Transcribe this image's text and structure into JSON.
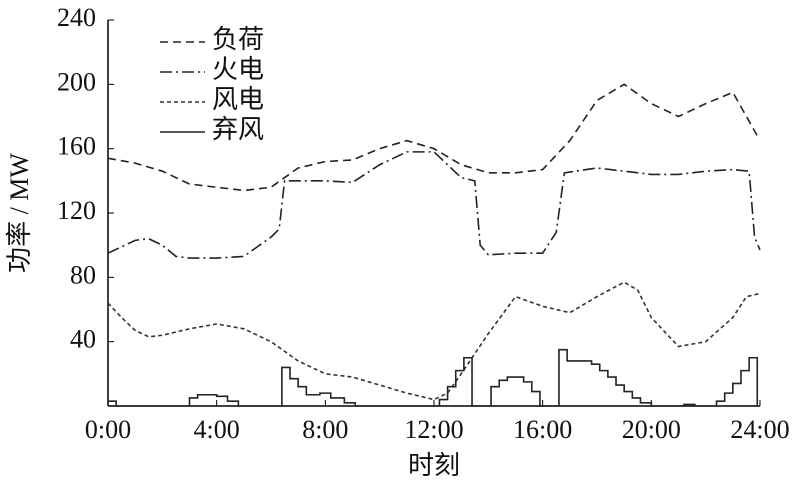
{
  "chart_data": {
    "type": "line",
    "x_label": "时刻",
    "y_label": "功率 / MW",
    "xlim": [
      0,
      24
    ],
    "ylim": [
      0,
      240
    ],
    "xticks": [
      {
        "value": 0,
        "label": "0:00"
      },
      {
        "value": 4,
        "label": "4:00"
      },
      {
        "value": 8,
        "label": "8:00"
      },
      {
        "value": 12,
        "label": "12:00"
      },
      {
        "value": 16,
        "label": "16:00"
      },
      {
        "value": 20,
        "label": "20:00"
      },
      {
        "value": 24,
        "label": "24:00"
      }
    ],
    "yticks": [
      40,
      80,
      120,
      160,
      200,
      240
    ],
    "grid": false,
    "legend": "upper left",
    "series": [
      {
        "name": "负荷",
        "color": "#222222",
        "line_style": "dashed",
        "x": [
          0,
          1,
          2,
          3,
          4,
          5,
          6,
          7,
          8,
          9,
          10,
          11,
          12,
          13,
          14,
          15,
          16,
          17,
          18,
          19,
          20,
          21,
          22,
          23,
          23.9
        ],
        "values": [
          154,
          151,
          146,
          138,
          136,
          134,
          136,
          148,
          152,
          153,
          160,
          165,
          160,
          150,
          145,
          145,
          147,
          165,
          190,
          200,
          188,
          180,
          188,
          195,
          168
        ]
      },
      {
        "name": "火电",
        "color": "#222222",
        "line_style": "dashdot",
        "x": [
          0,
          1,
          1.5,
          2,
          2.5,
          3,
          4,
          5,
          6,
          6.3,
          6.5,
          7,
          8,
          9,
          10,
          11,
          12,
          13,
          13.5,
          13.7,
          14,
          15,
          16,
          16.5,
          16.8,
          18,
          19,
          20,
          21,
          22,
          23,
          23.6,
          23.8,
          24
        ],
        "values": [
          95,
          103,
          104,
          100,
          93,
          92,
          92,
          93,
          105,
          110,
          140,
          140,
          140,
          139,
          150,
          158,
          158,
          142,
          140,
          100,
          94,
          95,
          95,
          108,
          145,
          148,
          146,
          144,
          144,
          146,
          147,
          146,
          105,
          97
        ]
      },
      {
        "name": "风电",
        "color": "#333333",
        "line_style": "dotted",
        "x": [
          0,
          0.5,
          1,
          1.5,
          2,
          3,
          4,
          5,
          6,
          7,
          8,
          9,
          10,
          11,
          12,
          12.5,
          13,
          14,
          15,
          16,
          17,
          18,
          19,
          19.5,
          20,
          21,
          22,
          23,
          23.5,
          24
        ],
        "values": [
          64,
          55,
          47,
          43,
          44,
          48,
          51,
          48,
          40,
          28,
          20,
          18,
          13,
          8,
          4,
          8,
          20,
          45,
          68,
          62,
          58,
          68,
          77,
          72,
          55,
          37,
          40,
          55,
          68,
          70
        ]
      },
      {
        "name": "弃风",
        "color": "#222222",
        "line_style": "solid",
        "step": "post",
        "x": [
          0,
          0.3,
          3,
          3.3,
          4,
          4.4,
          4.8,
          6.4,
          6.7,
          7,
          7.3,
          7.8,
          8.2,
          8.7,
          9.1,
          12.2,
          12.5,
          12.8,
          13.1,
          13.4,
          14.1,
          14.4,
          14.7,
          15.3,
          15.6,
          15.9,
          16.6,
          16.9,
          17.8,
          18.1,
          18.4,
          18.7,
          19,
          19.3,
          19.6,
          20,
          21.2,
          21.6,
          22.4,
          22.7,
          23,
          23.3,
          23.6,
          23.9
        ],
        "values": [
          3,
          0,
          5,
          7,
          6,
          3,
          0,
          24,
          17,
          12,
          7,
          8,
          5,
          2,
          0,
          4,
          12,
          22,
          30,
          0,
          12,
          16,
          18,
          15,
          9,
          0,
          35,
          28,
          26,
          22,
          18,
          13,
          9,
          5,
          2,
          0,
          1,
          0,
          3,
          8,
          14,
          22,
          30,
          0
        ]
      }
    ]
  }
}
